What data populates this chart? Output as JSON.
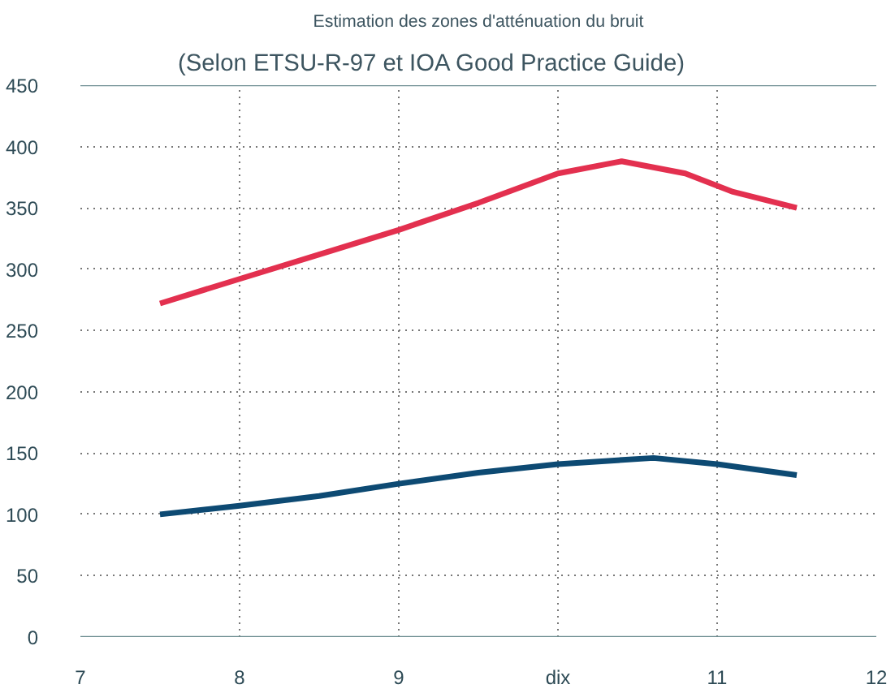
{
  "chart_data": {
    "type": "line",
    "title": "Estimation des zones d'atténuation du bruit",
    "subtitle": "(Selon ETSU-R-97 et IOA Good Practice Guide)",
    "series": [
      {
        "color": "#e3304f",
        "x": [
          7.5,
          8,
          8.5,
          9,
          9.5,
          10,
          10.4,
          10.8,
          11.1,
          11.5
        ],
        "values": [
          272,
          292,
          312,
          332,
          354,
          378,
          388,
          378,
          363,
          350
        ]
      },
      {
        "color": "#0d4a73",
        "x": [
          7.5,
          8,
          8.5,
          9,
          9.5,
          10,
          10.6,
          11,
          11.5
        ],
        "values": [
          100,
          107,
          115,
          125,
          134,
          141,
          146,
          141,
          132
        ]
      }
    ],
    "xlim": [
      7,
      12
    ],
    "xticks": [
      7,
      8,
      9,
      {
        "value": 10,
        "label": "dix"
      },
      11,
      12
    ],
    "ylim": [
      0,
      450
    ],
    "yticks": [
      0,
      50,
      100,
      150,
      200,
      250,
      300,
      350,
      400,
      450
    ],
    "grid": true,
    "line_style": "solid",
    "marker": "none"
  }
}
